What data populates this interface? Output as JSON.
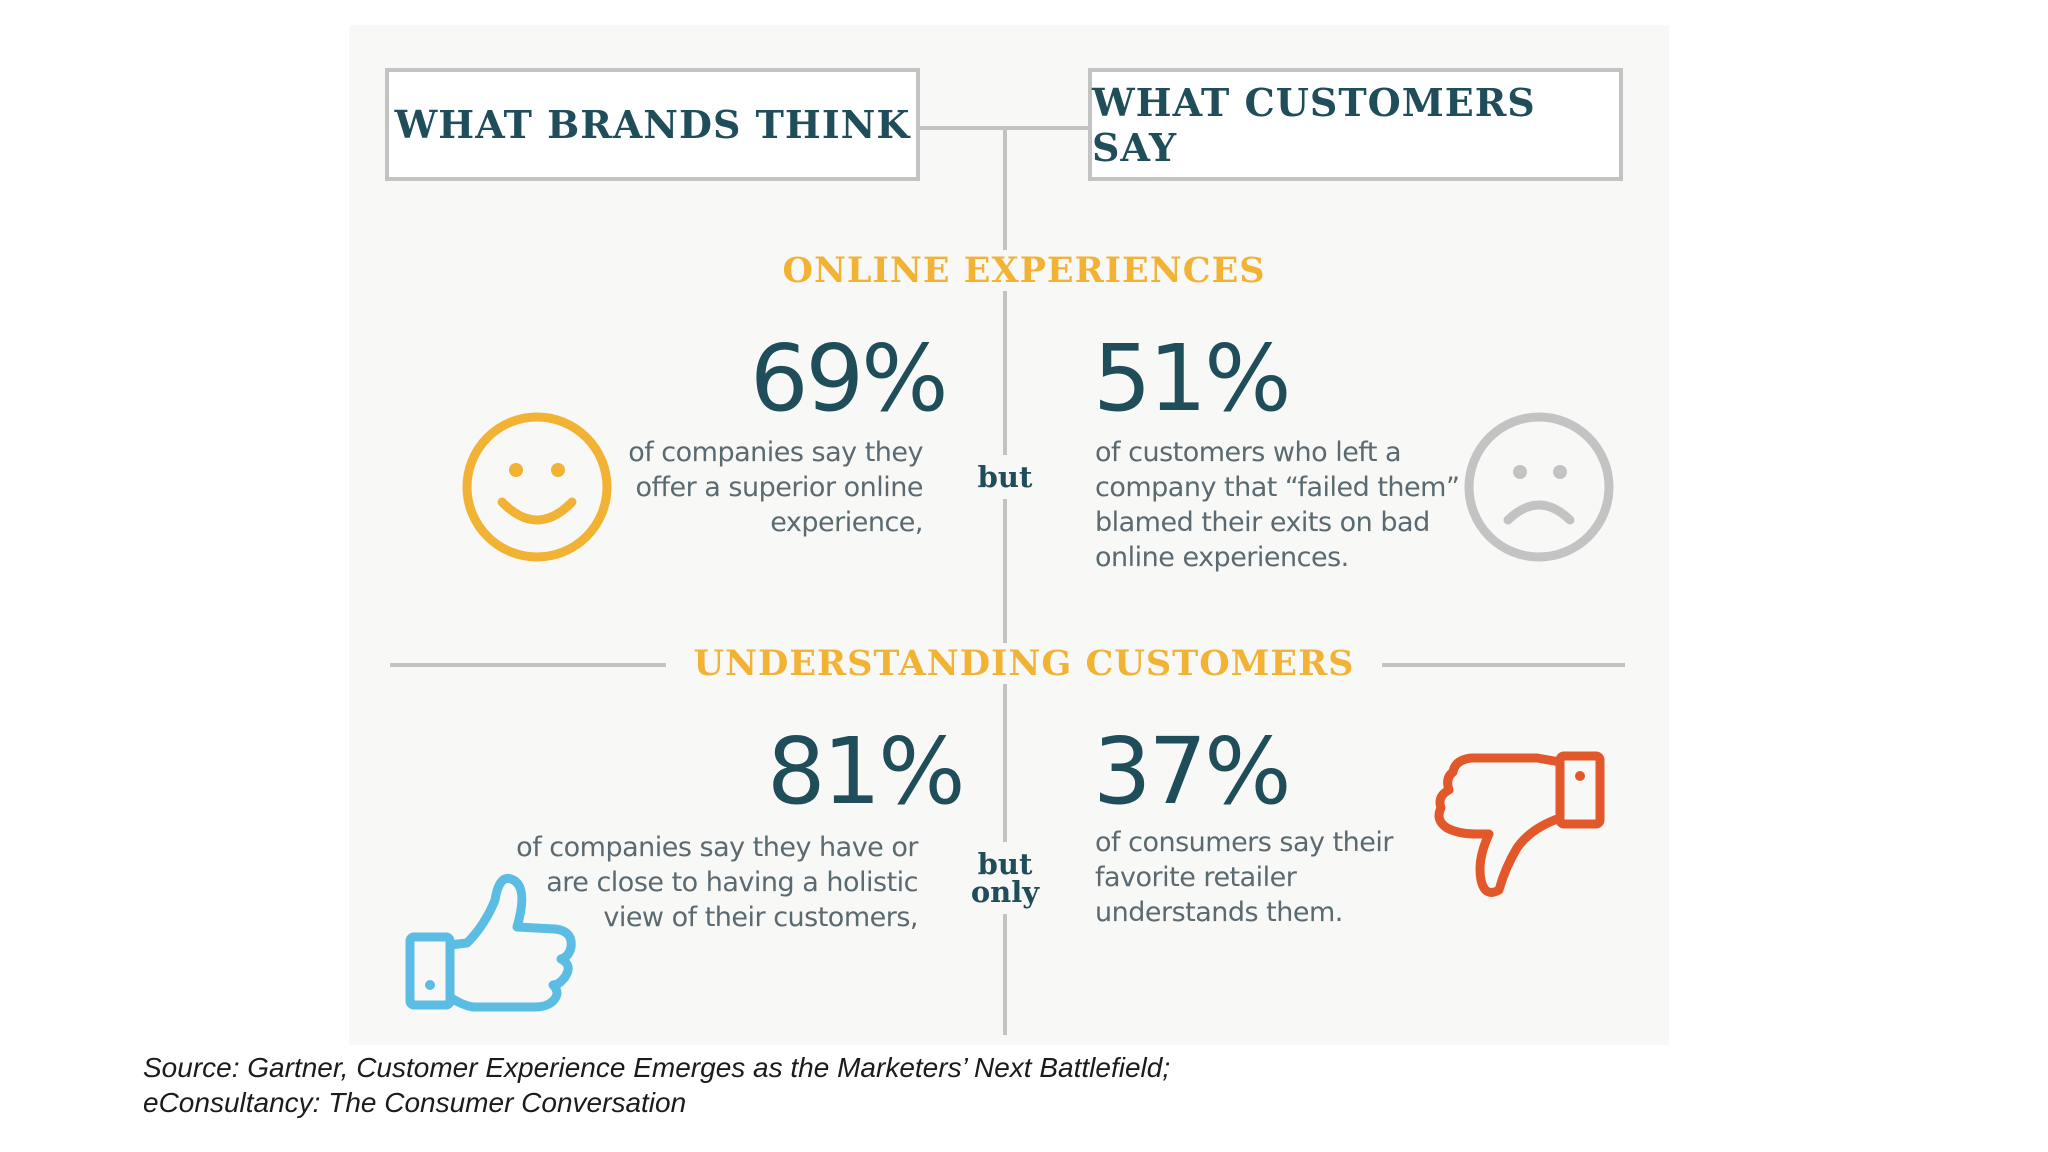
{
  "headers": {
    "left": "WHAT BRANDS THINK",
    "right": "WHAT CUSTOMERS SAY"
  },
  "sections": [
    {
      "title": "ONLINE EXPERIENCES",
      "left": {
        "percent": "69%",
        "lines": [
          "of companies say they",
          "offer a superior online",
          "experience,"
        ],
        "icon": "smiley-face-icon",
        "icon_color": "#f2b233"
      },
      "connector": "but",
      "right": {
        "percent": "51%",
        "lines": [
          "of customers who left a",
          "company that “failed them”",
          "blamed their exits on bad",
          "online experiences."
        ],
        "icon": "sad-face-icon",
        "icon_color": "#c3c3c3"
      }
    },
    {
      "title": "UNDERSTANDING CUSTOMERS",
      "left": {
        "percent": "81%",
        "lines": [
          "of companies say they have or",
          "are close to having a holistic",
          "view of their customers,"
        ],
        "icon": "thumbs-up-icon",
        "icon_color": "#5bbde4"
      },
      "connector_lines": [
        "but",
        "only"
      ],
      "right": {
        "percent": "37%",
        "lines": [
          "of consumers say their",
          "favorite retailer",
          "understands them."
        ],
        "icon": "thumbs-down-icon",
        "icon_color": "#e2582a"
      }
    }
  ],
  "source": {
    "line1": "Source:  Gartner, Customer Experience Emerges as the Marketers’ Next Battlefield;",
    "line2": "eConsultancy: The Consumer Conversation"
  }
}
